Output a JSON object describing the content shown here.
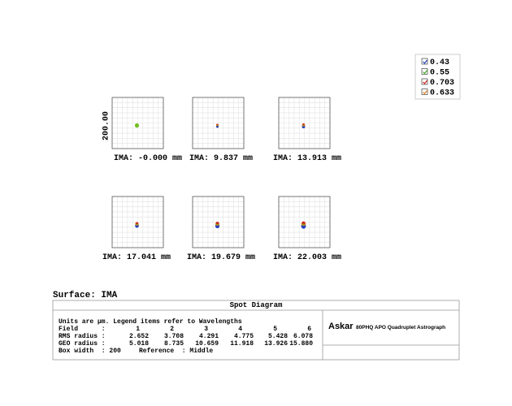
{
  "legend": {
    "items": [
      "0.43",
      "0.55",
      "0.703",
      "0.633"
    ]
  },
  "plot": {
    "scale_label": "200.00",
    "panels": [
      "IMA: -0.000 mm",
      "IMA: 9.837 mm",
      "IMA: 13.913 mm",
      "IMA: 17.041 mm",
      "IMA: 19.679 mm",
      "IMA: 22.003 mm"
    ]
  },
  "surface": "Surface: IMA",
  "title": "Spot Diagram",
  "info": {
    "note": "Units are µm. Legend items refer to Wavelengths",
    "rows": [
      {
        "label": "Field      :",
        "values": [
          "1",
          "2",
          "3",
          "4",
          "5",
          "6"
        ]
      },
      {
        "label": "RMS radius :",
        "values": [
          "2.652",
          "3.708",
          "4.291",
          "4.775",
          "5.428",
          "6.078"
        ]
      },
      {
        "label": "GEO radius :",
        "values": [
          "5.018",
          "8.735",
          "10.659",
          "11.918",
          "13.926",
          "15.880"
        ]
      }
    ],
    "box_width": [
      "Box width  : 200",
      "Reference  : Middle"
    ]
  },
  "logo": {
    "brand": "Askar",
    "product": "80PHQ APO Quadruplet Astrograph"
  }
}
